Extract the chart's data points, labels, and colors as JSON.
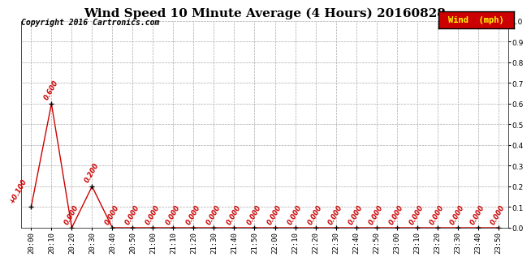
{
  "title": "Wind Speed 10 Minute Average (4 Hours) 20160828",
  "copyright": "Copyright 2016 Cartronics.com",
  "legend_label": "Wind  (mph)",
  "legend_bg": "#cc0000",
  "legend_text_color": "#ffff00",
  "line_color": "#cc0000",
  "marker_color": "#000000",
  "label_color": "#cc0000",
  "bg_color": "#ffffff",
  "grid_color": "#aaaaaa",
  "ylim": [
    0.0,
    1.0
  ],
  "yticks": [
    0.0,
    0.1,
    0.2,
    0.3,
    0.4,
    0.5,
    0.6,
    0.7,
    0.8,
    0.9,
    1.0
  ],
  "x_labels": [
    "20:00",
    "20:10",
    "20:20",
    "20:30",
    "20:40",
    "20:50",
    "21:00",
    "21:10",
    "21:20",
    "21:30",
    "21:40",
    "21:50",
    "22:00",
    "22:10",
    "22:20",
    "22:30",
    "22:40",
    "22:50",
    "23:00",
    "23:10",
    "23:20",
    "23:30",
    "23:40",
    "23:50"
  ],
  "y_values": [
    0.1,
    0.6,
    0.0,
    0.2,
    0.0,
    0.0,
    0.0,
    0.0,
    0.0,
    0.0,
    0.0,
    0.0,
    0.0,
    0.0,
    0.0,
    0.0,
    0.0,
    0.0,
    0.0,
    0.0,
    0.0,
    0.0,
    0.0,
    0.0
  ],
  "title_fontsize": 11,
  "axis_label_fontsize": 6.5,
  "data_label_fontsize": 6,
  "copyright_fontsize": 7
}
